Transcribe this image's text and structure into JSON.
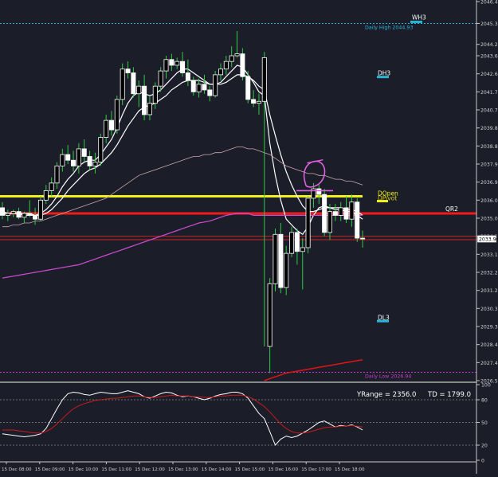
{
  "chart_data": {
    "type": "candlestick",
    "background": "#1b1d29",
    "price_axis": {
      "ticks": [
        "2046.45",
        "2045.30",
        "2044.20",
        "2043.60",
        "2042.65",
        "2041.70",
        "2040.75",
        "2039.80",
        "2038.85",
        "2037.90",
        "2036.95",
        "2036.00",
        "2035.05",
        "2034.10",
        "2033.15",
        "2032.20",
        "2031.25",
        "2030.30",
        "2029.35",
        "2028.40",
        "2027.45",
        "2026.50"
      ],
      "range": [
        2026.5,
        2046.45
      ],
      "current_price_label": "2033.96",
      "current_price": 2033.96
    },
    "time_axis": {
      "ticks": [
        "15 Dec 08:00",
        "15 Dec 09:00",
        "15 Dec 10:00",
        "15 Dec 11:00",
        "15 Dec 12:00",
        "15 Dec 13:00",
        "15 Dec 14:00",
        "15 Dec 15:00",
        "15 Dec 16:00",
        "15 Dec 17:00",
        "15 Dec 18:00"
      ]
    },
    "levels": [
      {
        "name": "WH3",
        "price": 2045.3,
        "color": "#29b6d6",
        "style": "dashed",
        "label": "Daily High 2044.93",
        "tag": "WH3"
      },
      {
        "name": "DH3",
        "price": 2042.65,
        "color": "#29b6d6",
        "style": "marker",
        "tag": "DH3"
      },
      {
        "name": "DOpen",
        "price": 2036.2,
        "color": "#f2f21a",
        "style": "thick",
        "tag": "DOpen",
        "tag2": "DPivot"
      },
      {
        "name": "QR2",
        "price": 2035.3,
        "color": "#ef1c1c",
        "style": "thick",
        "tag": "QR2"
      },
      {
        "name": "DL3",
        "price": 2029.8,
        "color": "#29b6d6",
        "style": "marker",
        "tag": "DL3"
      },
      {
        "name": "DailyLow",
        "price": 2026.94,
        "color": "#c83ccd",
        "style": "dashed",
        "label": "Daily Low 2026.94"
      }
    ],
    "candles": [
      [
        2035.6,
        2035.9,
        2035.0,
        2035.2
      ],
      [
        2035.2,
        2035.5,
        2034.9,
        2035.3
      ],
      [
        2035.3,
        2035.5,
        2035.1,
        2035.4
      ],
      [
        2035.4,
        2035.6,
        2035.0,
        2035.1
      ],
      [
        2035.1,
        2035.4,
        2034.8,
        2035.3
      ],
      [
        2035.3,
        2036.0,
        2035.1,
        2035.2
      ],
      [
        2035.2,
        2035.6,
        2034.7,
        2035.0
      ],
      [
        2035.0,
        2036.2,
        2034.9,
        2036.0
      ],
      [
        2036.0,
        2036.8,
        2035.8,
        2036.5
      ],
      [
        2036.5,
        2037.2,
        2036.2,
        2036.9
      ],
      [
        2036.9,
        2038.0,
        2036.6,
        2037.8
      ],
      [
        2037.8,
        2038.7,
        2037.5,
        2038.4
      ],
      [
        2038.4,
        2038.9,
        2037.9,
        2038.1
      ],
      [
        2038.1,
        2038.6,
        2037.5,
        2037.8
      ],
      [
        2037.8,
        2039.0,
        2037.4,
        2038.7
      ],
      [
        2038.7,
        2039.2,
        2038.0,
        2038.3
      ],
      [
        2038.3,
        2038.6,
        2037.6,
        2037.8
      ],
      [
        2037.8,
        2038.5,
        2037.4,
        2038.0
      ],
      [
        2038.0,
        2039.5,
        2037.8,
        2039.3
      ],
      [
        2039.3,
        2040.5,
        2039.0,
        2040.2
      ],
      [
        2040.2,
        2040.7,
        2039.4,
        2039.7
      ],
      [
        2039.7,
        2041.5,
        2039.5,
        2041.3
      ],
      [
        2041.3,
        2043.2,
        2041.0,
        2042.9
      ],
      [
        2042.9,
        2043.3,
        2042.4,
        2042.7
      ],
      [
        2042.7,
        2043.0,
        2041.4,
        2041.6
      ],
      [
        2041.6,
        2042.3,
        2040.9,
        2042.0
      ],
      [
        2042.0,
        2042.6,
        2040.2,
        2040.5
      ],
      [
        2040.5,
        2041.5,
        2040.2,
        2041.1
      ],
      [
        2041.1,
        2042.2,
        2040.8,
        2042.0
      ],
      [
        2042.0,
        2043.0,
        2041.7,
        2042.8
      ],
      [
        2042.8,
        2043.6,
        2042.4,
        2043.4
      ],
      [
        2043.4,
        2043.7,
        2042.8,
        2043.1
      ],
      [
        2043.1,
        2043.5,
        2042.9,
        2043.3
      ],
      [
        2043.3,
        2043.8,
        2042.5,
        2042.7
      ],
      [
        2042.7,
        2043.4,
        2042.0,
        2042.3
      ],
      [
        2042.3,
        2042.5,
        2041.5,
        2041.7
      ],
      [
        2041.7,
        2042.4,
        2041.4,
        2042.1
      ],
      [
        2042.1,
        2042.6,
        2041.6,
        2041.8
      ],
      [
        2041.8,
        2042.0,
        2041.2,
        2041.5
      ],
      [
        2041.5,
        2042.8,
        2041.4,
        2042.6
      ],
      [
        2042.6,
        2043.2,
        2042.3,
        2042.9
      ],
      [
        2042.9,
        2043.6,
        2042.6,
        2043.3
      ],
      [
        2043.3,
        2044.1,
        2043.0,
        2043.6
      ],
      [
        2043.6,
        2044.9,
        2043.5,
        2043.7
      ],
      [
        2043.7,
        2044.0,
        2042.3,
        2042.5
      ],
      [
        2042.5,
        2042.8,
        2041.1,
        2041.3
      ],
      [
        2041.3,
        2041.8,
        2040.9,
        2041.1
      ],
      [
        2041.1,
        2041.6,
        2040.5,
        2041.2
      ],
      [
        2041.2,
        2043.8,
        2028.3,
        2043.5
      ],
      [
        2028.3,
        2031.9,
        2026.9,
        2031.6
      ],
      [
        2031.6,
        2034.5,
        2031.2,
        2034.2
      ],
      [
        2034.2,
        2034.8,
        2031.1,
        2031.4
      ],
      [
        2031.4,
        2033.6,
        2031.0,
        2033.2
      ],
      [
        2033.2,
        2034.6,
        2033.0,
        2034.3
      ],
      [
        2034.3,
        2034.5,
        2032.6,
        2033.3
      ],
      [
        2033.3,
        2034.0,
        2031.3,
        2033.5
      ],
      [
        2033.5,
        2036.2,
        2033.2,
        2036.1
      ],
      [
        2036.1,
        2036.9,
        2035.6,
        2036.6
      ],
      [
        2036.6,
        2036.8,
        2035.8,
        2036.3
      ],
      [
        2036.3,
        2036.6,
        2034.1,
        2034.3
      ],
      [
        2034.3,
        2035.8,
        2033.9,
        2035.4
      ],
      [
        2035.4,
        2035.8,
        2034.9,
        2035.2
      ],
      [
        2035.2,
        2035.9,
        2034.9,
        2035.6
      ],
      [
        2035.6,
        2036.2,
        2034.8,
        2035.0
      ],
      [
        2035.0,
        2036.3,
        2034.6,
        2035.9
      ],
      [
        2035.9,
        2036.1,
        2033.8,
        2034.0
      ],
      [
        2034.0,
        2034.4,
        2033.5,
        2033.96
      ]
    ],
    "moving_averages": [
      {
        "name": "fast",
        "color": "#ffffff",
        "values": [
          2035.4,
          2035.3,
          2035.3,
          2035.3,
          2035.3,
          2035.3,
          2035.2,
          2035.3,
          2035.5,
          2035.8,
          2036.2,
          2036.7,
          2037.1,
          2037.4,
          2037.8,
          2038.0,
          2038.1,
          2038.1,
          2038.4,
          2038.8,
          2039.2,
          2039.8,
          2040.5,
          2041.1,
          2041.5,
          2041.7,
          2041.6,
          2041.5,
          2041.6,
          2041.8,
          2042.1,
          2042.4,
          2042.7,
          2042.9,
          2042.9,
          2042.7,
          2042.5,
          2042.3,
          2042.1,
          2042.1,
          2042.2,
          2042.5,
          2042.8,
          2043.1,
          2043.0,
          2042.6,
          2042.2,
          2041.7,
          2041.5,
          2039.0,
          2037.3,
          2036.0,
          2035.0,
          2034.7,
          2034.4,
          2034.2,
          2034.6,
          2035.2,
          2035.6,
          2035.7,
          2035.6,
          2035.5,
          2035.5,
          2035.4,
          2035.4,
          2035.2,
          2035.0
        ]
      },
      {
        "name": "slow",
        "color": "#ffffff",
        "values": [
          2035.3,
          2035.3,
          2035.3,
          2035.3,
          2035.2,
          2035.2,
          2035.2,
          2035.2,
          2035.3,
          2035.5,
          2035.8,
          2036.1,
          2036.5,
          2036.8,
          2037.1,
          2037.4,
          2037.6,
          2037.7,
          2037.9,
          2038.2,
          2038.5,
          2038.9,
          2039.4,
          2039.9,
          2040.3,
          2040.7,
          2040.9,
          2041.0,
          2041.1,
          2041.3,
          2041.5,
          2041.8,
          2042.0,
          2042.2,
          2042.3,
          2042.3,
          2042.3,
          2042.2,
          2042.1,
          2042.1,
          2042.1,
          2042.2,
          2042.4,
          2042.6,
          2042.6,
          2042.5,
          2042.3,
          2042.0,
          2041.8,
          2040.5,
          2039.4,
          2038.4,
          2037.5,
          2036.8,
          2036.2,
          2035.7,
          2035.4,
          2035.4,
          2035.5,
          2035.6,
          2035.6,
          2035.6,
          2035.6,
          2035.5,
          2035.5,
          2035.4,
          2035.2
        ]
      },
      {
        "name": "ma50",
        "color": "#c9a9a9",
        "values": [
          2034.6,
          2034.6,
          2034.7,
          2034.7,
          2034.8,
          2034.8,
          2034.9,
          2034.9,
          2035.0,
          2035.1,
          2035.2,
          2035.3,
          2035.4,
          2035.5,
          2035.6,
          2035.7,
          2035.8,
          2035.9,
          2036.0,
          2036.1,
          2036.3,
          2036.5,
          2036.7,
          2036.9,
          2037.1,
          2037.3,
          2037.4,
          2037.5,
          2037.6,
          2037.7,
          2037.8,
          2037.9,
          2038.0,
          2038.1,
          2038.2,
          2038.3,
          2038.3,
          2038.4,
          2038.4,
          2038.5,
          2038.5,
          2038.6,
          2038.7,
          2038.8,
          2038.8,
          2038.7,
          2038.7,
          2038.6,
          2038.5,
          2038.4,
          2038.2,
          2038.0,
          2037.8,
          2037.7,
          2037.6,
          2037.5,
          2037.4,
          2037.4,
          2037.3,
          2037.3,
          2037.2,
          2037.1,
          2037.1,
          2037.0,
          2037.0,
          2036.9,
          2036.8
        ]
      },
      {
        "name": "ma200",
        "color": "#d14bd6",
        "values": [
          2031.9,
          2031.95,
          2032.0,
          2032.05,
          2032.1,
          2032.15,
          2032.2,
          2032.25,
          2032.3,
          2032.35,
          2032.4,
          2032.45,
          2032.5,
          2032.55,
          2032.6,
          2032.7,
          2032.8,
          2032.9,
          2033.0,
          2033.1,
          2033.2,
          2033.3,
          2033.4,
          2033.5,
          2033.6,
          2033.7,
          2033.8,
          2033.9,
          2034.0,
          2034.1,
          2034.2,
          2034.3,
          2034.4,
          2034.5,
          2034.6,
          2034.7,
          2034.8,
          2034.85,
          2034.9,
          2035.0,
          2035.1,
          2035.2,
          2035.25,
          2035.3,
          2035.3,
          2035.3,
          2035.2,
          2035.2,
          2035.2,
          2035.2,
          2035.2,
          2035.2,
          2035.2,
          2035.2,
          2035.2,
          2035.2,
          2035.2,
          2035.2,
          2035.2,
          2035.2,
          2035.2,
          2035.2,
          2035.2,
          2035.2,
          2035.2,
          2035.2,
          2035.2
        ]
      }
    ],
    "lower_band": {
      "color": "#e01515",
      "from_index": 48,
      "values": [
        2026.5,
        2026.6,
        2026.7,
        2026.8,
        2026.9,
        2026.95,
        2027.0,
        2027.05,
        2027.1,
        2027.15,
        2027.2,
        2027.25,
        2027.3,
        2027.35,
        2027.4,
        2027.45,
        2027.5,
        2027.55,
        2027.6
      ]
    },
    "oscillator": {
      "yrange_label": "YRange = 2356.0",
      "td_label": "TD = 1799.0",
      "range": [
        0,
        100
      ],
      "ticks": [
        "100",
        "80",
        "50",
        "20",
        "0"
      ],
      "levels": [
        80,
        50,
        20
      ],
      "series": [
        {
          "name": "fast",
          "color": "#ffffff",
          "values": [
            35,
            34,
            33,
            32,
            31,
            32,
            33,
            35,
            42,
            55,
            68,
            80,
            88,
            90,
            89,
            87,
            86,
            88,
            90,
            89,
            88,
            88,
            90,
            92,
            90,
            88,
            84,
            82,
            85,
            88,
            90,
            89,
            86,
            84,
            85,
            84,
            82,
            80,
            82,
            85,
            87,
            88,
            90,
            90,
            88,
            82,
            72,
            62,
            55,
            38,
            20,
            28,
            32,
            30,
            32,
            36,
            40,
            45,
            50,
            52,
            48,
            44,
            46,
            45,
            47,
            44,
            40
          ]
        },
        {
          "name": "slow",
          "color": "#cc1a1a",
          "values": [
            40,
            40,
            40,
            39,
            38,
            37,
            36,
            36,
            38,
            42,
            48,
            55,
            62,
            68,
            72,
            75,
            77,
            79,
            80,
            81,
            82,
            82,
            83,
            84,
            85,
            85,
            84,
            83,
            83,
            84,
            85,
            86,
            85,
            85,
            85,
            84,
            84,
            83,
            83,
            84,
            85,
            85,
            86,
            86,
            86,
            84,
            81,
            76,
            71,
            64,
            56,
            48,
            42,
            38,
            36,
            36,
            37,
            39,
            41,
            43,
            44,
            44,
            45,
            45,
            46,
            45,
            44
          ]
        }
      ]
    }
  }
}
